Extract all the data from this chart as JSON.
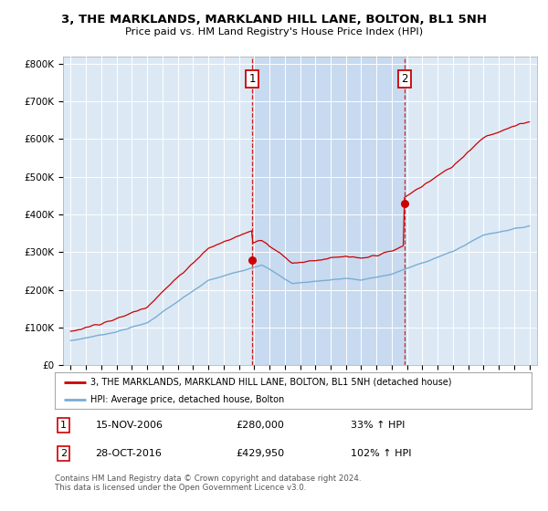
{
  "title": "3, THE MARKLANDS, MARKLAND HILL LANE, BOLTON, BL1 5NH",
  "subtitle": "Price paid vs. HM Land Registry's House Price Index (HPI)",
  "background_color": "#ffffff",
  "plot_bg_color": "#dce9f5",
  "highlight_color": "#c5d9ef",
  "hpi_color": "#7aadd4",
  "price_color": "#cc0000",
  "ylabel_ticks": [
    "£0",
    "£100K",
    "£200K",
    "£300K",
    "£400K",
    "£500K",
    "£600K",
    "£700K",
    "£800K"
  ],
  "ylabel_values": [
    0,
    100000,
    200000,
    300000,
    400000,
    500000,
    600000,
    700000,
    800000
  ],
  "ylim": [
    0,
    820000
  ],
  "xlim_start": 1994.5,
  "xlim_end": 2025.5,
  "purchase1_x": 2006.87,
  "purchase1_y": 280000,
  "purchase2_x": 2016.83,
  "purchase2_y": 429950,
  "legend_line1": "3, THE MARKLANDS, MARKLAND HILL LANE, BOLTON, BL1 5NH (detached house)",
  "legend_line2": "HPI: Average price, detached house, Bolton",
  "info1_date": "15-NOV-2006",
  "info1_price": "£280,000",
  "info1_hpi": "33% ↑ HPI",
  "info2_date": "28-OCT-2016",
  "info2_price": "£429,950",
  "info2_hpi": "102% ↑ HPI",
  "footer": "Contains HM Land Registry data © Crown copyright and database right 2024.\nThis data is licensed under the Open Government Licence v3.0."
}
